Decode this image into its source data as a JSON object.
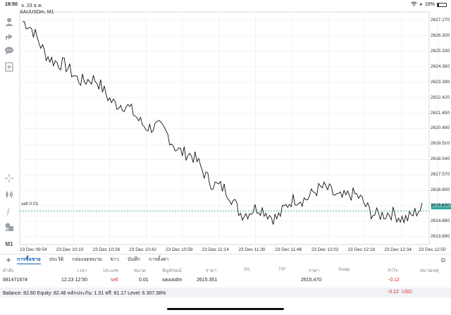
{
  "status_bar": {
    "time": "19:50",
    "date": "จ. 23 ธ.ค.",
    "battery": "18%",
    "battery_level": 0.18
  },
  "chart": {
    "symbol_label": "XAUUSDm, M1",
    "sell_label": "sell 0.01",
    "current_price_tag": "2615.310",
    "y_ticks": [
      "2627.270",
      "2626.300",
      "2625.330",
      "2624.360",
      "2623.390",
      "2622.420",
      "2621.450",
      "2620.480",
      "2619.510",
      "2618.540",
      "2617.570",
      "2616.600",
      "2615.630",
      "2614.660",
      "2613.690"
    ],
    "x_ticks": [
      "23 Dec 09:54",
      "23 Dec 10:10",
      "23 Dec 10:26",
      "23 Dec 10:42",
      "23 Dec 10:58",
      "23 Dec 11:14",
      "23 Dec 11:30",
      "23 Dec 11:46",
      "23 Dec 12:02",
      "23 Dec 12:18",
      "23 Dec 12:34",
      "23 Dec 12:50"
    ],
    "colors": {
      "line": "#111111",
      "sell_line": "#2aa7a0",
      "grid": "#e8e8e8"
    }
  },
  "chart_data": {
    "type": "line",
    "xlabel": "",
    "ylabel": "",
    "x": [
      "23 Dec 09:54",
      "23 Dec 10:10",
      "23 Dec 10:26",
      "23 Dec 10:42",
      "23 Dec 10:58",
      "23 Dec 11:14",
      "23 Dec 11:30",
      "23 Dec 11:46",
      "23 Dec 12:02",
      "23 Dec 12:18",
      "23 Dec 12:34",
      "23 Dec 12:50"
    ],
    "series": [
      {
        "values": [
          2627.2,
          2624.4,
          2623.3,
          2621.4,
          2620.0,
          2617.8,
          2615.4,
          2615.1,
          2616.6,
          2616.3,
          2614.9,
          2615.2
        ]
      }
    ],
    "ylim": [
      2613.2,
      2627.8
    ],
    "grid": true,
    "sell_level": 2615.31
  },
  "toolbar": {
    "items": [
      "person-icon",
      "share-icon",
      "chat-icon",
      "add-chart-icon",
      "crosshair-icon",
      "candles-icon",
      "function-icon",
      "objects-icon",
      "timeframe-label"
    ],
    "timeframe": "M1"
  },
  "tabs": {
    "items": [
      "การซื้อขาย",
      "ประวัติ",
      "กล่องจดหมาย",
      "ข่าว",
      "บันทึก",
      "การตั้งค่า"
    ],
    "active_index": 0
  },
  "table": {
    "headers": [
      "คำสั่ง",
      "เวลา",
      "ประเภท",
      "ขนาด",
      "สัญลักษณ์",
      "ราคา",
      "S/L",
      "T/P",
      "ราคา",
      "Swap",
      "กำไร",
      "หมายเหตุ"
    ],
    "row": {
      "order": "681471674",
      "time": "12.23 12:50",
      "type": "sell",
      "size": "0.01",
      "symbol": "xauusdm",
      "price": "2615.351",
      "sl": "",
      "tp": "",
      "current_price": "2615.470",
      "swap": "",
      "profit": "-0.12",
      "comment": ""
    }
  },
  "balance": {
    "text": "Balance: 82.60 Equity: 82.48 หลักประกัน: 1.31 ฟรี: 81.17 Level: 6 307.38%",
    "profit": "-0.12",
    "currency": "USD"
  }
}
